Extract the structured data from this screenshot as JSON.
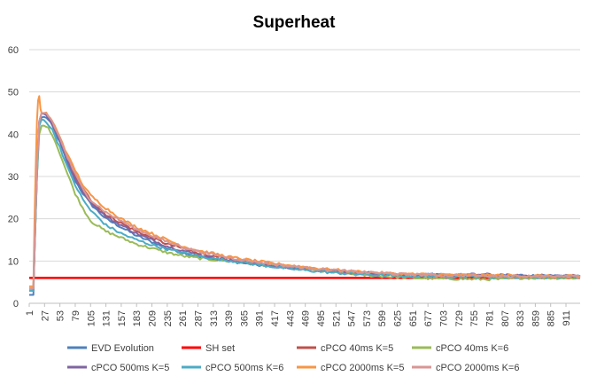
{
  "chart_data": {
    "type": "line",
    "title": "Superheat",
    "xlabel": "",
    "ylabel": "",
    "ylim": [
      0,
      60
    ],
    "yticks": [
      "0",
      "10",
      "20",
      "30",
      "40",
      "50",
      "60"
    ],
    "xlim": [
      1,
      935
    ],
    "xticks": [
      "1",
      "27",
      "53",
      "79",
      "105",
      "131",
      "157",
      "183",
      "209",
      "235",
      "261",
      "287",
      "313",
      "339",
      "365",
      "391",
      "417",
      "443",
      "469",
      "495",
      "521",
      "547",
      "573",
      "599",
      "625",
      "651",
      "677",
      "703",
      "729",
      "755",
      "781",
      "807",
      "833",
      "859",
      "885",
      "911"
    ],
    "grid": "horizontal",
    "legend_position": "bottom",
    "colors": {
      "axis": "#bfbfbf",
      "grid": "#d9d9d9",
      "text": "#404040"
    },
    "series": [
      {
        "name": "EVD Evolution",
        "color": "#4f81bd",
        "x": [
          1,
          8,
          10,
          14,
          18,
          22,
          30,
          40,
          53,
          66,
          79,
          92,
          105,
          131,
          157,
          183,
          209,
          235,
          261,
          287,
          313,
          339,
          365,
          391,
          417,
          443,
          469,
          495,
          521,
          547,
          573,
          599,
          625,
          651,
          677,
          703,
          729,
          755,
          781,
          807,
          833,
          859,
          885,
          911,
          935
        ],
        "y": [
          2,
          2,
          12,
          30,
          42,
          44,
          44,
          42,
          38,
          33,
          29,
          26,
          23.5,
          20,
          18,
          16,
          14.5,
          13,
          12,
          11,
          10.5,
          10,
          9.5,
          9,
          8.7,
          8.4,
          8.1,
          7.8,
          7.6,
          7.4,
          7.2,
          7.0,
          6.9,
          6.8,
          6.8,
          6.7,
          6.7,
          6.6,
          6.6,
          6.6,
          6.5,
          6.5,
          6.5,
          6.5,
          6.4
        ]
      },
      {
        "name": "SH set",
        "color": "#ff0000",
        "x": [
          1,
          935
        ],
        "y": [
          6,
          6
        ]
      },
      {
        "name": "cPCO 40ms K=5",
        "color": "#c0504d",
        "x": [
          1,
          8,
          10,
          14,
          18,
          22,
          30,
          40,
          53,
          66,
          79,
          92,
          105,
          131,
          157,
          183,
          209,
          235,
          261,
          287,
          313,
          339,
          365,
          391,
          417,
          443,
          469,
          495,
          521,
          547,
          573,
          599,
          625,
          651,
          677,
          703,
          729,
          755,
          781,
          807,
          833,
          859,
          885,
          911,
          935
        ],
        "y": [
          3.5,
          3.5,
          14,
          32,
          43,
          45,
          44.5,
          42.5,
          39,
          34,
          30,
          27,
          24.5,
          21,
          19,
          17,
          15.5,
          14,
          13,
          12,
          11,
          10.5,
          10,
          9.5,
          9,
          8.6,
          8.3,
          8,
          7.7,
          7.5,
          7.2,
          7.0,
          6.8,
          6.7,
          6.6,
          6.5,
          6.4,
          6.4,
          6.3,
          6.3,
          6.3,
          6.3,
          6.3,
          6.3,
          6.3
        ]
      },
      {
        "name": "cPCO 40ms K=6",
        "color": "#9bbb59",
        "x": [
          1,
          8,
          10,
          14,
          18,
          22,
          30,
          40,
          53,
          66,
          79,
          92,
          105,
          131,
          157,
          183,
          209,
          235,
          261,
          287,
          313,
          339,
          365,
          391,
          417,
          443,
          469,
          495,
          521,
          547,
          573,
          599,
          625,
          651,
          677,
          703,
          729,
          755,
          781,
          807,
          833,
          859,
          885,
          911,
          935
        ],
        "y": [
          3,
          3,
          12,
          30,
          40,
          42,
          42,
          40,
          35.5,
          30.5,
          26,
          22.5,
          19.5,
          17,
          15.5,
          14,
          13,
          12,
          11.2,
          10.7,
          10.3,
          10,
          9.6,
          9.2,
          8.8,
          8.4,
          8.0,
          7.6,
          7.2,
          6.9,
          6.6,
          6.4,
          6.2,
          6.0,
          5.9,
          5.8,
          5.8,
          5.7,
          5.7,
          5.7,
          6.0,
          6.0,
          6.0,
          6.0,
          6.0
        ]
      },
      {
        "name": "cPCO 500ms K=5",
        "color": "#8064a2",
        "x": [
          1,
          8,
          10,
          14,
          18,
          22,
          30,
          40,
          53,
          66,
          79,
          92,
          105,
          131,
          157,
          183,
          209,
          235,
          261,
          287,
          313,
          339,
          365,
          391,
          417,
          443,
          469,
          495,
          521,
          547,
          573,
          599,
          625,
          651,
          677,
          703,
          729,
          755,
          781,
          807,
          833,
          859,
          885,
          911,
          935
        ],
        "y": [
          3,
          3,
          13,
          31,
          43,
          45,
          44.5,
          42.5,
          38.5,
          33.5,
          29.5,
          26.5,
          24,
          20.5,
          18.5,
          16.5,
          15,
          13.5,
          12.5,
          11.5,
          10.8,
          10.2,
          9.7,
          9.2,
          8.8,
          8.4,
          8.1,
          7.8,
          7.5,
          7.3,
          7.1,
          6.9,
          6.8,
          6.7,
          6.7,
          6.7,
          6.7,
          6.8,
          6.8,
          6.6,
          6.5,
          6.5,
          6.5,
          6.5,
          6.5
        ]
      },
      {
        "name": "cPCO 500ms K=6",
        "color": "#4bacc6",
        "x": [
          1,
          8,
          10,
          14,
          18,
          22,
          30,
          40,
          53,
          66,
          79,
          92,
          105,
          131,
          157,
          183,
          209,
          235,
          261,
          287,
          313,
          339,
          365,
          391,
          417,
          443,
          469,
          495,
          521,
          547,
          573,
          599,
          625,
          651,
          677,
          703,
          729,
          755,
          781,
          807,
          833,
          859,
          885,
          911,
          935
        ],
        "y": [
          3,
          3,
          12,
          30,
          42,
          43.5,
          43,
          41,
          37,
          32,
          28,
          24.5,
          22,
          18.5,
          16.5,
          15,
          13.8,
          12.8,
          12,
          11.2,
          10.6,
          10.1,
          9.6,
          9.1,
          8.6,
          8.2,
          7.8,
          7.5,
          7.2,
          7.0,
          6.8,
          6.6,
          6.5,
          6.4,
          6.4,
          6.4,
          6.3,
          6.3,
          6.2,
          6.2,
          6.2,
          6.2,
          6.2,
          6.2,
          6.2
        ]
      },
      {
        "name": "cPCO 2000ms K=5",
        "color": "#f79646",
        "x": [
          1,
          8,
          10,
          12,
          14,
          16,
          18,
          20,
          22,
          26,
          30,
          40,
          53,
          66,
          79,
          92,
          105,
          131,
          157,
          183,
          209,
          235,
          261,
          287,
          313,
          339,
          365,
          391,
          417,
          443,
          469,
          495,
          521,
          547,
          573,
          599,
          625,
          651,
          677,
          703,
          729,
          755,
          781,
          807,
          833,
          859,
          885,
          911,
          935
        ],
        "y": [
          4,
          4,
          20,
          32,
          43,
          48,
          49,
          46,
          45,
          45,
          45,
          43,
          39.5,
          35,
          31.5,
          28,
          25.5,
          22.5,
          20,
          18,
          16.5,
          15,
          13.5,
          12.5,
          11.8,
          11,
          10.4,
          9.9,
          9.4,
          9.0,
          8.6,
          8.2,
          7.9,
          7.6,
          7.4,
          7.2,
          7.0,
          6.9,
          6.8,
          6.8,
          6.7,
          6.7,
          6.6,
          6.6,
          6.5,
          6.5,
          6.4,
          6.4,
          6.4
        ]
      },
      {
        "name": "cPCO 2000ms K=6",
        "color": "#d99694",
        "x": [
          1,
          8,
          10,
          14,
          18,
          22,
          30,
          40,
          53,
          66,
          79,
          92,
          105,
          131,
          157,
          183,
          209,
          235,
          261,
          287,
          313,
          339,
          365,
          391,
          417,
          443,
          469,
          495,
          521,
          547,
          573,
          599,
          625,
          651,
          677,
          703,
          729,
          755,
          781,
          807,
          833,
          859,
          885,
          911,
          935
        ],
        "y": [
          3.5,
          3.5,
          14,
          32,
          43,
          45,
          45,
          43,
          39,
          34.5,
          30.5,
          27,
          24.5,
          21.5,
          19.5,
          17.5,
          16,
          14.5,
          13.3,
          12.3,
          11.5,
          10.8,
          10.2,
          9.7,
          9.2,
          8.8,
          8.4,
          8.1,
          7.8,
          7.5,
          7.3,
          7.1,
          6.9,
          6.8,
          6.7,
          6.6,
          6.6,
          6.5,
          6.5,
          6.4,
          6.4,
          6.4,
          6.3,
          6.3,
          6.3
        ]
      }
    ]
  }
}
